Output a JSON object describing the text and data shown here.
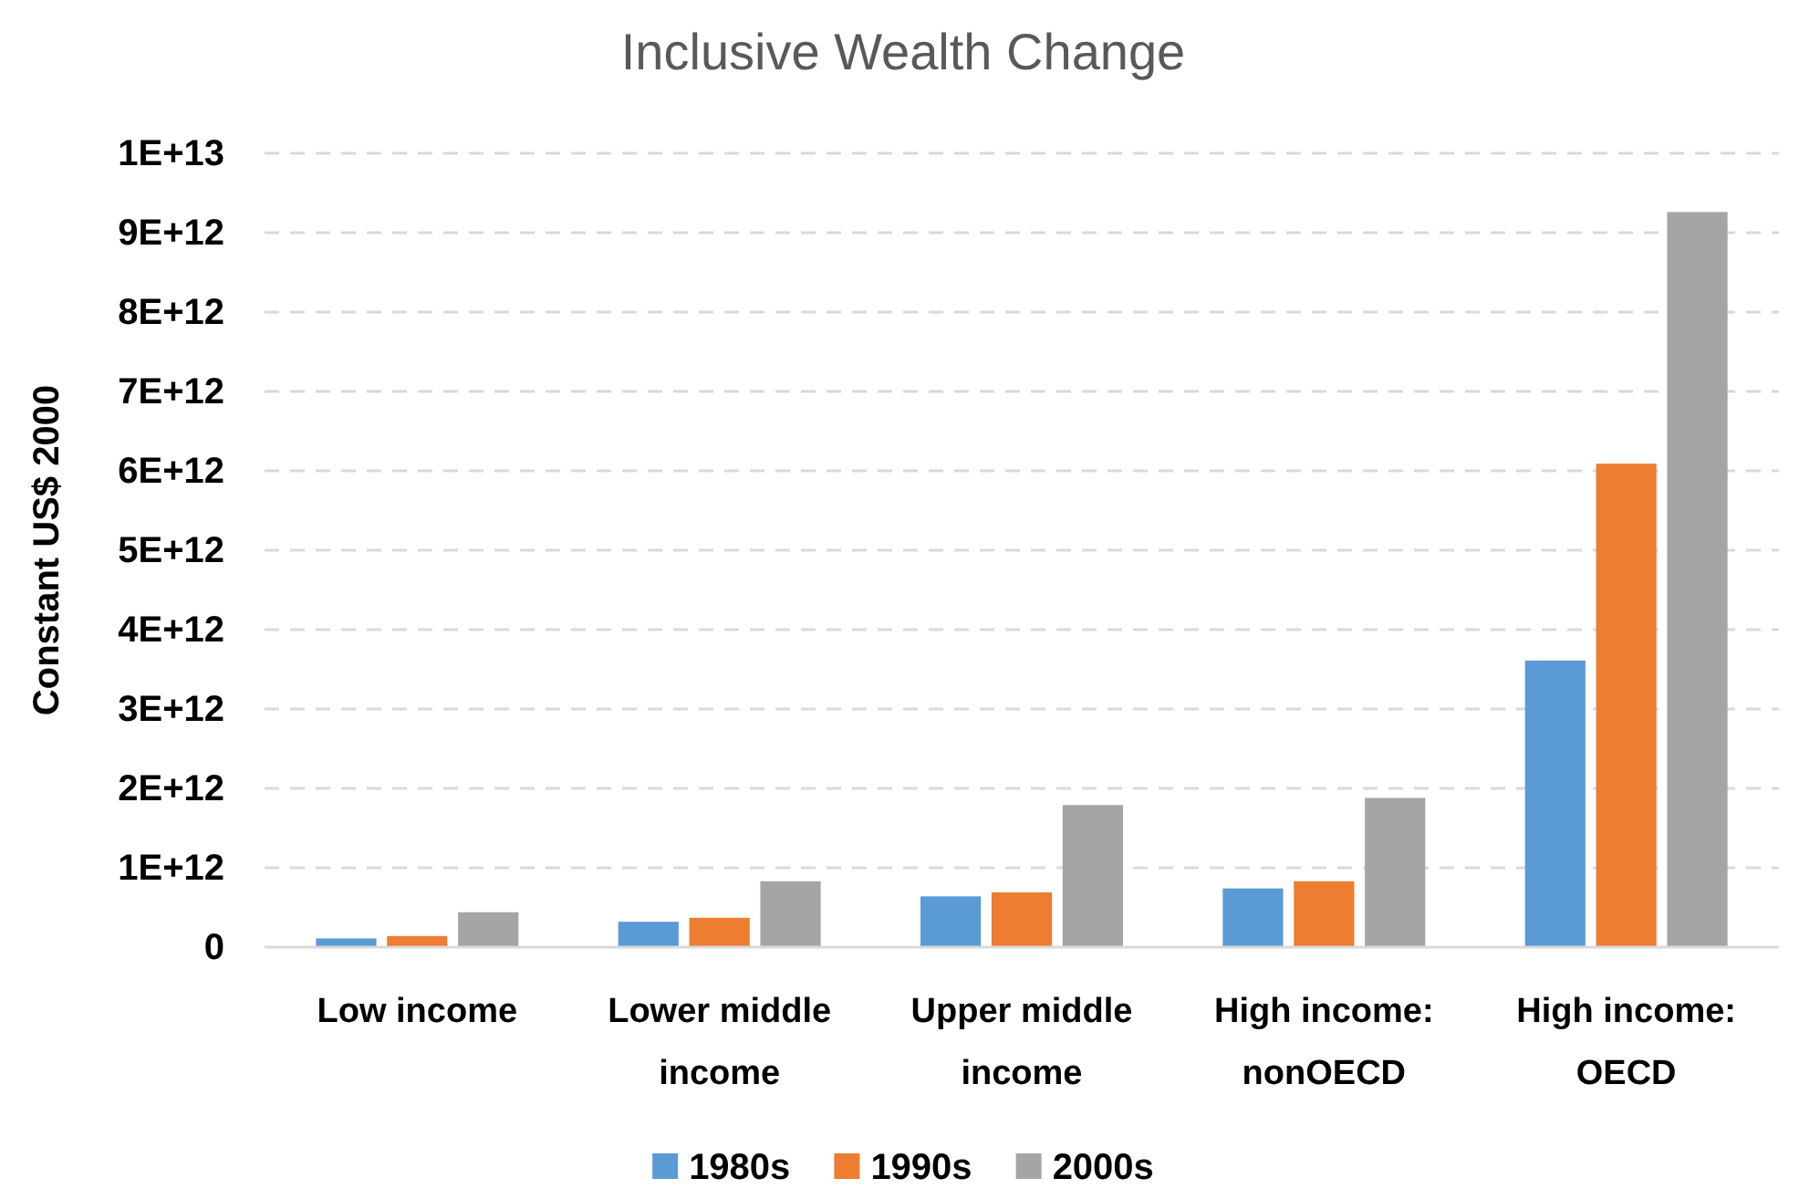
{
  "chart_data": {
    "type": "bar",
    "title": "Inclusive Wealth Change",
    "ylabel": "Constant US$ 2000",
    "categories": [
      "Low income",
      "Lower middle income",
      "Upper middle income",
      "High income: nonOECD",
      "High income: OECD"
    ],
    "series": [
      {
        "name": "1980s",
        "color": "#5b9bd5",
        "values": [
          110000000000.0,
          320000000000.0,
          640000000000.0,
          740000000000.0,
          3610000000000.0
        ]
      },
      {
        "name": "1990s",
        "color": "#ed7d31",
        "values": [
          140000000000.0,
          370000000000.0,
          690000000000.0,
          830000000000.0,
          6090000000000.0
        ]
      },
      {
        "name": "2000s",
        "color": "#a5a5a5",
        "values": [
          440000000000.0,
          830000000000.0,
          1790000000000.0,
          1880000000000.0,
          9260000000000.0
        ]
      }
    ],
    "ylim": [
      0,
      10000000000000.0
    ],
    "yticks": [
      0,
      {
        "value": 1000000000000.0,
        "label": "1E+12"
      },
      {
        "value": 2000000000000.0,
        "label": "2E+12"
      },
      {
        "value": 3000000000000.0,
        "label": "3E+12"
      },
      {
        "value": 4000000000000.0,
        "label": "4E+12"
      },
      {
        "value": 5000000000000.0,
        "label": "5E+12"
      },
      {
        "value": 6000000000000.0,
        "label": "6E+12"
      },
      {
        "value": 7000000000000.0,
        "label": "7E+12"
      },
      {
        "value": 8000000000000.0,
        "label": "8E+12"
      },
      {
        "value": 9000000000000.0,
        "label": "9E+12"
      },
      {
        "value": 10000000000000.0,
        "label": "1E+13"
      }
    ],
    "grid": "y",
    "legend": "bottom"
  }
}
